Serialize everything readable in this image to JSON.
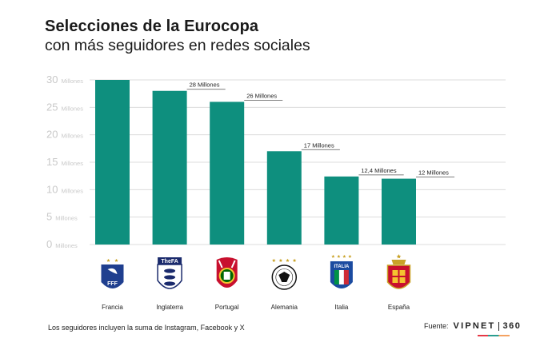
{
  "header": {
    "title": "Selecciones de la Eurocopa",
    "subtitle": "con más seguidores en redes sociales"
  },
  "chart_data": {
    "type": "bar",
    "categories": [
      "Francia",
      "Inglaterra",
      "Portugal",
      "Alemania",
      "Italia",
      "España"
    ],
    "values": [
      30,
      28,
      26,
      17,
      12.4,
      12
    ],
    "data_labels": [
      "",
      "28 Millones",
      "26 Millones",
      "17 Millones",
      "12,4 Millones",
      "12 Millones"
    ],
    "yticks": [
      0,
      5,
      10,
      15,
      20,
      25,
      30
    ],
    "ytick_labels": [
      "0",
      "5",
      "10",
      "15",
      "20",
      "25",
      "30"
    ],
    "ytick_unit": "Millones",
    "ylim": [
      0,
      30
    ],
    "grid": true,
    "colors": {
      "bar": "#0e8f7e",
      "grid": "#dcdcdc",
      "axis_text": "#c9c9c9",
      "label_line": "#555555"
    },
    "icons": [
      "fff-crest-icon",
      "thefa-crest-icon",
      "fpf-crest-icon",
      "dfb-crest-icon",
      "figc-crest-icon",
      "rfef-crest-icon"
    ]
  },
  "footer": {
    "note": "Los seguidores incluyen la suma de Instagram, Facebook y X",
    "source_label": "Fuente:",
    "brand": "VIPNET",
    "brand_num": "360"
  }
}
